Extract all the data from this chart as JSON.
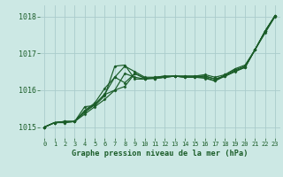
{
  "title": "Graphe pression niveau de la mer (hPa)",
  "background_color": "#cce8e4",
  "grid_color": "#aacccc",
  "line_color": "#1a5c28",
  "xlim": [
    -0.5,
    23.5
  ],
  "ylim": [
    1014.7,
    1018.3
  ],
  "yticks": [
    1015,
    1016,
    1017,
    1018
  ],
  "xticks": [
    0,
    1,
    2,
    3,
    4,
    5,
    6,
    7,
    8,
    9,
    10,
    11,
    12,
    13,
    14,
    15,
    16,
    17,
    18,
    19,
    20,
    21,
    22,
    23
  ],
  "series": [
    [
      1015.0,
      1015.12,
      1015.12,
      1015.15,
      1015.55,
      1015.58,
      1015.85,
      1016.65,
      1016.68,
      1016.3,
      1016.3,
      1016.35,
      1016.38,
      1016.38,
      1016.38,
      1016.38,
      1016.42,
      1016.35,
      1016.42,
      1016.58,
      1016.68,
      1017.1,
      1017.55,
      1018.0
    ],
    [
      1015.0,
      1015.12,
      1015.12,
      1015.15,
      1015.35,
      1015.55,
      1015.75,
      1016.0,
      1016.45,
      1016.35,
      1016.3,
      1016.32,
      1016.35,
      1016.38,
      1016.38,
      1016.38,
      1016.38,
      1016.3,
      1016.38,
      1016.5,
      1016.62,
      1017.1,
      1017.6,
      1018.02
    ],
    [
      1015.0,
      1015.12,
      1015.15,
      1015.15,
      1015.4,
      1015.6,
      1015.9,
      1016.35,
      1016.2,
      1016.45,
      1016.32,
      1016.32,
      1016.35,
      1016.38,
      1016.35,
      1016.35,
      1016.35,
      1016.25,
      1016.38,
      1016.52,
      1016.62,
      1017.1,
      1017.6,
      1018.02
    ],
    [
      1015.0,
      1015.12,
      1015.15,
      1015.15,
      1015.42,
      1015.62,
      1015.88,
      1016.0,
      1016.1,
      1016.45,
      1016.32,
      1016.32,
      1016.35,
      1016.38,
      1016.35,
      1016.35,
      1016.38,
      1016.3,
      1016.38,
      1016.52,
      1016.62,
      1017.1,
      1017.6,
      1018.02
    ],
    [
      1015.0,
      1015.12,
      1015.15,
      1015.15,
      1015.45,
      1015.65,
      1016.05,
      1016.35,
      1016.65,
      1016.5,
      1016.35,
      1016.35,
      1016.38,
      1016.38,
      1016.35,
      1016.35,
      1016.32,
      1016.25,
      1016.42,
      1016.55,
      1016.65,
      1017.1,
      1017.6,
      1018.02
    ]
  ]
}
